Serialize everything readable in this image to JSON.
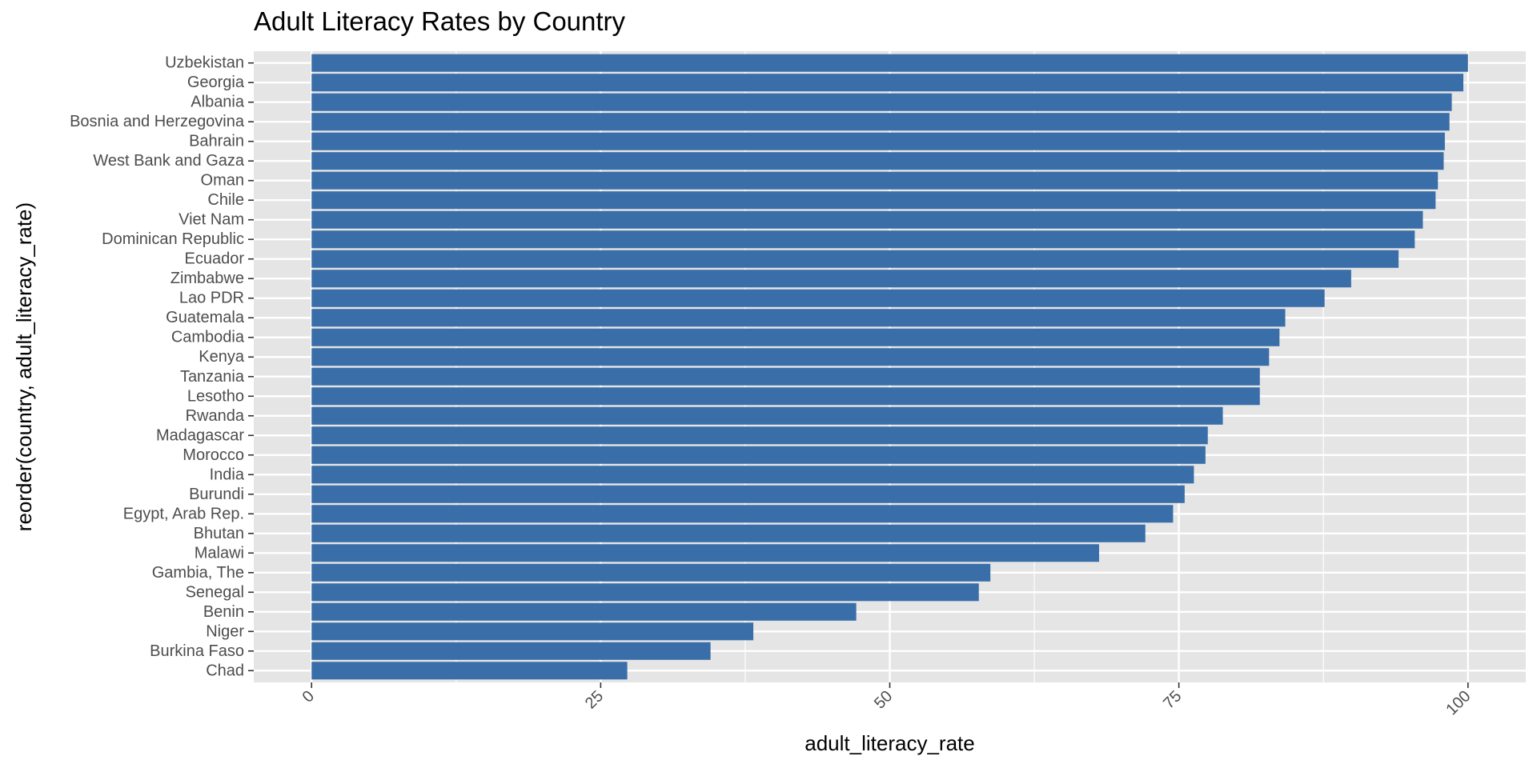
{
  "chart_data": {
    "type": "bar",
    "orientation": "horizontal",
    "title": "Adult Literacy Rates by Country",
    "xlabel": "adult_literacy_rate",
    "ylabel": "reorder(country, adult_literacy_rate)",
    "xlim": [
      -5,
      105
    ],
    "x_ticks": [
      0,
      25,
      50,
      75,
      100
    ],
    "x_tick_labels": [
      "0",
      "25",
      "50",
      "75",
      "100"
    ],
    "grid": true,
    "legend": "none",
    "bar_color": "#3A6EA8",
    "panel_background": "#E5E5E5",
    "categories": [
      "Uzbekistan",
      "Georgia",
      "Albania",
      "Bosnia and Herzegovina",
      "Bahrain",
      "West Bank and Gaza",
      "Oman",
      "Chile",
      "Viet Nam",
      "Dominican Republic",
      "Ecuador",
      "Zimbabwe",
      "Lao PDR",
      "Guatemala",
      "Cambodia",
      "Kenya",
      "Tanzania",
      "Lesotho",
      "Rwanda",
      "Madagascar",
      "Morocco",
      "India",
      "Burundi",
      "Egypt, Arab Rep.",
      "Bhutan",
      "Malawi",
      "Gambia, The",
      "Senegal",
      "Benin",
      "Niger",
      "Burkina Faso",
      "Chad"
    ],
    "values": [
      100.0,
      99.6,
      98.6,
      98.4,
      98.0,
      97.9,
      97.4,
      97.2,
      96.1,
      95.4,
      94.0,
      89.9,
      87.6,
      84.2,
      83.7,
      82.8,
      82.0,
      82.0,
      78.8,
      77.5,
      77.3,
      76.3,
      75.5,
      74.5,
      72.1,
      68.1,
      58.7,
      57.7,
      47.1,
      38.2,
      34.5,
      27.3
    ]
  }
}
